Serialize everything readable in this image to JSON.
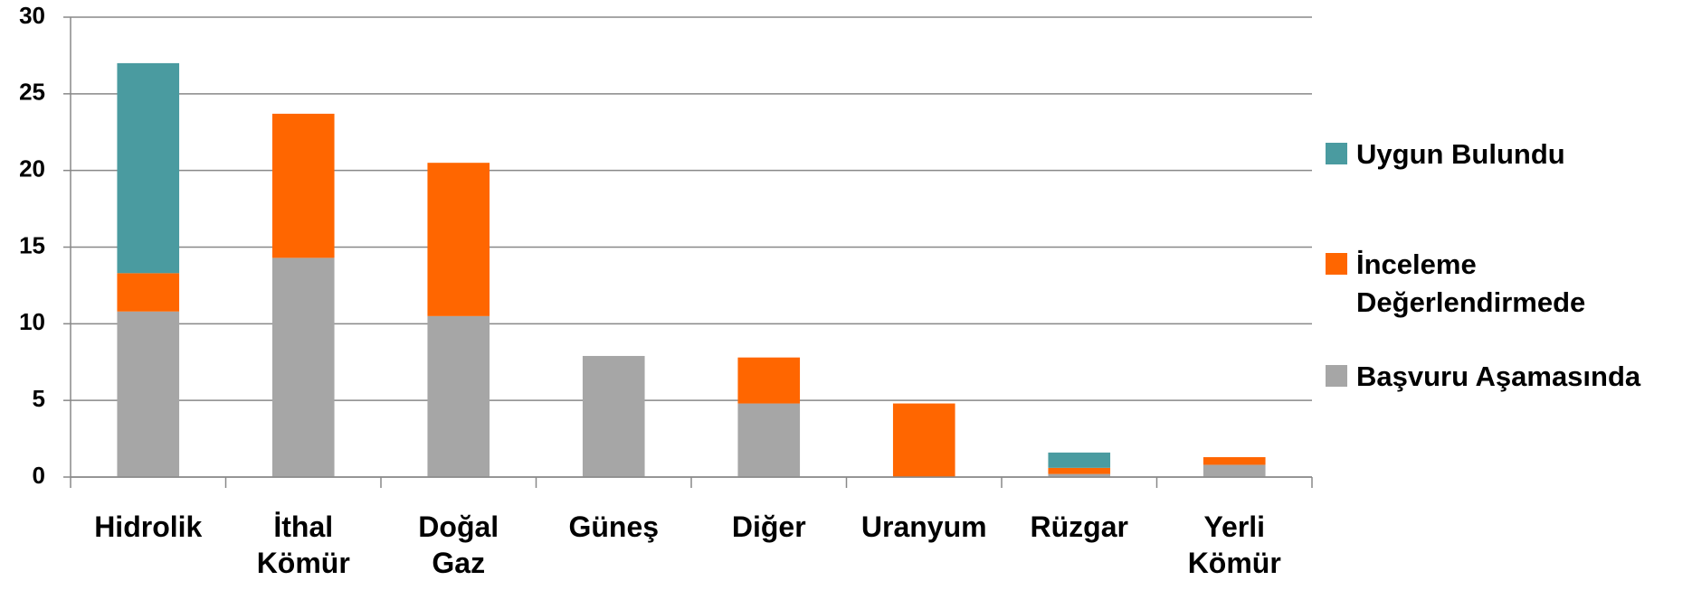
{
  "chart_data": {
    "type": "stacked_bar",
    "categories": [
      "Hidrolik",
      "İthal Kömür",
      "Doğal Gaz",
      "Güneş",
      "Diğer",
      "Uranyum",
      "Rüzgar",
      "Yerli Kömür"
    ],
    "series": [
      {
        "name": "Başvuru Aşamasında",
        "color": "#a6a6a6",
        "values": [
          10.8,
          14.3,
          10.5,
          7.9,
          4.8,
          0,
          0.2,
          0.8
        ]
      },
      {
        "name": "İnceleme Değerlendirmede",
        "color": "#ff6600",
        "values": [
          2.5,
          9.4,
          10.0,
          0,
          3.0,
          4.8,
          0.4,
          0.5
        ]
      },
      {
        "name": "Uygun Bulundu",
        "color": "#4a9ba0",
        "values": [
          13.7,
          0,
          0,
          0,
          0,
          0,
          1.0,
          0
        ]
      }
    ],
    "ylim": [
      0,
      30
    ],
    "yticks": [
      0,
      5,
      10,
      15,
      20,
      25,
      30
    ],
    "grid": true,
    "legend": "right"
  }
}
